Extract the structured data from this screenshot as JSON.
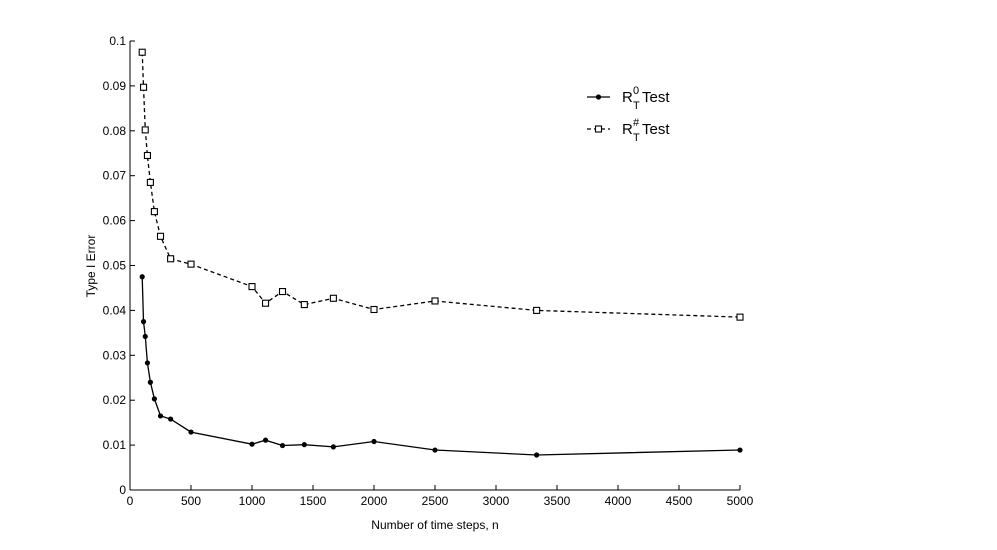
{
  "chart_data": {
    "type": "line",
    "xlabel": "Number of time steps, n",
    "ylabel": "Type I Error",
    "xlim": [
      0,
      5000
    ],
    "ylim": [
      0,
      0.1
    ],
    "xticks": [
      0,
      500,
      1000,
      1500,
      2000,
      2500,
      3000,
      3500,
      4000,
      4500,
      5000
    ],
    "yticks": [
      0,
      0.01,
      0.02,
      0.03,
      0.04,
      0.05,
      0.06,
      0.07,
      0.08,
      0.09,
      0.1
    ],
    "xtick_labels": [
      "0",
      "500",
      "1000",
      "1500",
      "2000",
      "2500",
      "3000",
      "3500",
      "4000",
      "4500",
      "5000"
    ],
    "ytick_labels": [
      "0",
      "0.01",
      "0.02",
      "0.03",
      "0.04",
      "0.05",
      "0.06",
      "0.07",
      "0.08",
      "0.09",
      "0.1"
    ],
    "grid": false,
    "legend_position": "top-right",
    "legend": [
      {
        "base": "R",
        "sup": "0",
        "sub": "T",
        "suffix": " Test"
      },
      {
        "base": "R",
        "sup": "#",
        "sub": "T",
        "suffix": " Test"
      }
    ],
    "series": [
      {
        "style": "solid",
        "marker": "circle",
        "color": "#000000",
        "x": [
          100,
          111,
          125,
          143,
          167,
          200,
          250,
          333,
          500,
          1000,
          1111,
          1250,
          1429,
          1667,
          2000,
          2500,
          3333,
          5000
        ],
        "y": [
          0.0475,
          0.0375,
          0.0342,
          0.0283,
          0.024,
          0.0203,
          0.0165,
          0.0158,
          0.0129,
          0.0102,
          0.0111,
          0.0099,
          0.0101,
          0.0096,
          0.0108,
          0.0089,
          0.0078,
          0.0089
        ]
      },
      {
        "style": "dashed",
        "marker": "square",
        "color": "#000000",
        "x": [
          100,
          111,
          125,
          143,
          167,
          200,
          250,
          333,
          500,
          1000,
          1111,
          1250,
          1429,
          1667,
          2000,
          2500,
          3333,
          5000
        ],
        "y": [
          0.0975,
          0.0897,
          0.0802,
          0.0745,
          0.0685,
          0.062,
          0.0565,
          0.0515,
          0.0503,
          0.0453,
          0.0416,
          0.0442,
          0.0413,
          0.0427,
          0.0402,
          0.0421,
          0.04,
          0.0385
        ]
      }
    ]
  }
}
